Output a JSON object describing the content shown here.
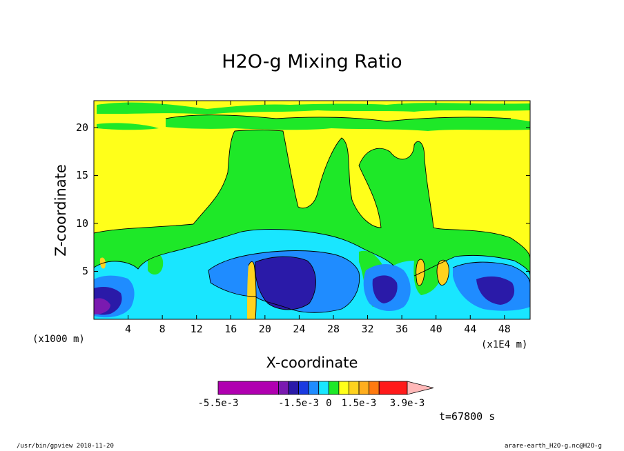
{
  "chart_data": {
    "type": "heatmap",
    "title": "H2O-g Mixing Ratio",
    "xlabel": "X-coordinate",
    "ylabel": "Z-coordinate",
    "x_unit_left": "(x1000 m)",
    "x_unit_right": "(x1E4 m)",
    "xlim": [
      0,
      51
    ],
    "ylim": [
      0,
      22.8
    ],
    "x_ticks": [
      4,
      8,
      12,
      16,
      20,
      24,
      28,
      32,
      36,
      40,
      44,
      48
    ],
    "x_tick_labels": [
      "4",
      "8",
      "12",
      "16",
      "20",
      "24",
      "28",
      "32",
      "36",
      "40",
      "44",
      "48"
    ],
    "y_ticks": [
      5,
      10,
      15,
      20
    ],
    "y_tick_labels": [
      "5",
      "10",
      "15",
      "20"
    ],
    "timestamp": "t=67800 s",
    "colorbar": {
      "labels": [
        "-5.5e-3",
        "-1.5e-3",
        "0",
        "1.5e-3",
        "3.9e-3"
      ],
      "label_values": [
        -0.0055,
        -0.0015,
        0,
        0.0015,
        0.0039
      ],
      "colors": [
        "#b000b0",
        "#7a1ab0",
        "#2a1aa8",
        "#1a3ae0",
        "#1f8cff",
        "#19e6ff",
        "#1ee828",
        "#ffff1a",
        "#ffd21e",
        "#ffae1e",
        "#ff7a10",
        "#ff1a1a",
        "#ff7878",
        "#ffb8b8"
      ],
      "bounds": [
        -0.0055,
        -0.0025,
        -0.002,
        -0.0015,
        -0.001,
        -0.0005,
        0,
        0.0005,
        0.001,
        0.0015,
        0.002,
        0.0025,
        0.0039
      ]
    }
  },
  "footer": {
    "left": "/usr/bin/gpview  2010-11-20",
    "right": "arare-earth_H2O-g.nc@H2O-g"
  }
}
